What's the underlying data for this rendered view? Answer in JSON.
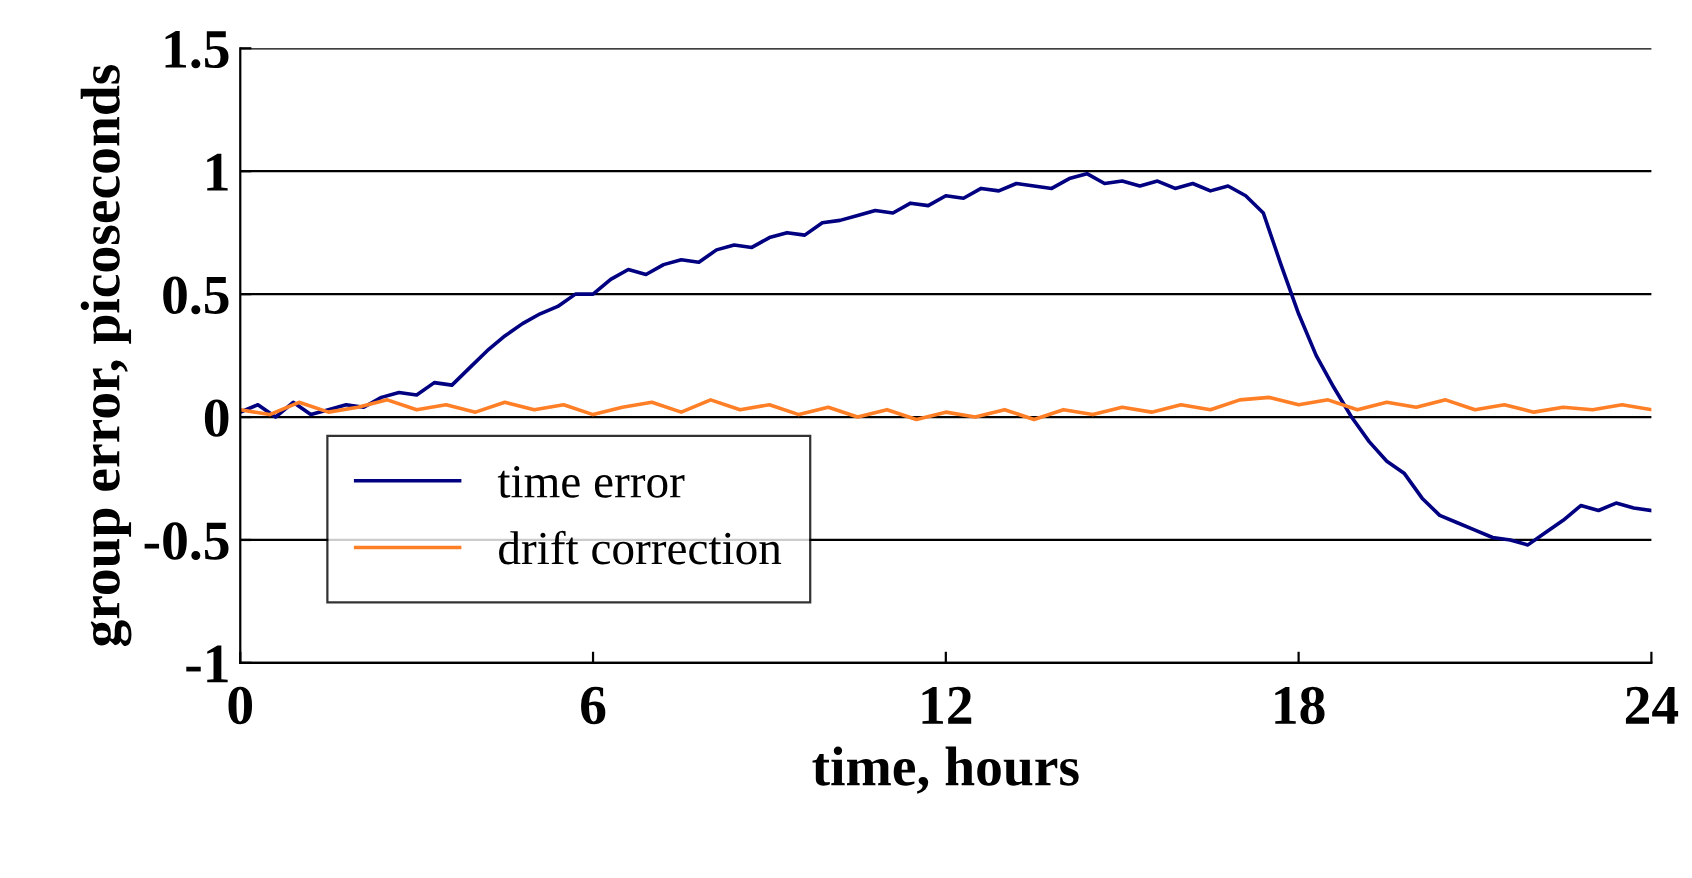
{
  "chart_data": {
    "type": "line",
    "xlabel": "time, hours",
    "ylabel": "group error, picoseconds",
    "xlim": [
      0,
      24
    ],
    "ylim": [
      -1,
      1.5
    ],
    "xticks": [
      0,
      6,
      12,
      18,
      24
    ],
    "yticks": [
      -1,
      -0.5,
      0,
      0.5,
      1,
      1.5
    ],
    "grid": "y",
    "legend": "bottom left",
    "marker": "none",
    "line_style": "solid",
    "series": [
      {
        "name": "time error",
        "color": "#000080",
        "x": [
          0,
          0.3,
          0.6,
          0.9,
          1.2,
          1.5,
          1.8,
          2.1,
          2.4,
          2.7,
          3.0,
          3.3,
          3.6,
          3.9,
          4.2,
          4.5,
          4.8,
          5.1,
          5.4,
          5.7,
          6.0,
          6.3,
          6.6,
          6.9,
          7.2,
          7.5,
          7.8,
          8.1,
          8.4,
          8.7,
          9.0,
          9.3,
          9.6,
          9.9,
          10.2,
          10.5,
          10.8,
          11.1,
          11.4,
          11.7,
          12.0,
          12.3,
          12.6,
          12.9,
          13.2,
          13.5,
          13.8,
          14.1,
          14.4,
          14.7,
          15.0,
          15.3,
          15.6,
          15.9,
          16.2,
          16.5,
          16.8,
          17.1,
          17.4,
          17.7,
          18.0,
          18.3,
          18.6,
          18.9,
          19.2,
          19.5,
          19.8,
          20.1,
          20.4,
          20.7,
          21.0,
          21.3,
          21.6,
          21.9,
          22.2,
          22.5,
          22.8,
          23.1,
          23.4,
          23.7,
          24.0
        ],
        "values": [
          0.02,
          0.05,
          0.0,
          0.06,
          0.01,
          0.03,
          0.05,
          0.04,
          0.08,
          0.1,
          0.09,
          0.14,
          0.13,
          0.2,
          0.27,
          0.33,
          0.38,
          0.42,
          0.45,
          0.5,
          0.5,
          0.56,
          0.6,
          0.58,
          0.62,
          0.64,
          0.63,
          0.68,
          0.7,
          0.69,
          0.73,
          0.75,
          0.74,
          0.79,
          0.8,
          0.82,
          0.84,
          0.83,
          0.87,
          0.86,
          0.9,
          0.89,
          0.93,
          0.92,
          0.95,
          0.94,
          0.93,
          0.97,
          0.99,
          0.95,
          0.96,
          0.94,
          0.96,
          0.93,
          0.95,
          0.92,
          0.94,
          0.9,
          0.83,
          0.62,
          0.42,
          0.25,
          0.12,
          0.0,
          -0.1,
          -0.18,
          -0.23,
          -0.33,
          -0.4,
          -0.43,
          -0.46,
          -0.49,
          -0.5,
          -0.52,
          -0.47,
          -0.42,
          -0.36,
          -0.38,
          -0.35,
          -0.37,
          -0.38
        ]
      },
      {
        "name": "drift correction",
        "color": "#ff7f27",
        "x": [
          0,
          0.5,
          1,
          1.5,
          2,
          2.5,
          3,
          3.5,
          4,
          4.5,
          5,
          5.5,
          6,
          6.5,
          7,
          7.5,
          8,
          8.5,
          9,
          9.5,
          10,
          10.5,
          11,
          11.5,
          12,
          12.5,
          13,
          13.5,
          14,
          14.5,
          15,
          15.5,
          16,
          16.5,
          17,
          17.5,
          18,
          18.5,
          19,
          19.5,
          20,
          20.5,
          21,
          21.5,
          22,
          22.5,
          23,
          23.5,
          24
        ],
        "values": [
          0.03,
          0.01,
          0.06,
          0.02,
          0.04,
          0.07,
          0.03,
          0.05,
          0.02,
          0.06,
          0.03,
          0.05,
          0.01,
          0.04,
          0.06,
          0.02,
          0.07,
          0.03,
          0.05,
          0.01,
          0.04,
          0.0,
          0.03,
          -0.01,
          0.02,
          0.0,
          0.03,
          -0.01,
          0.03,
          0.01,
          0.04,
          0.02,
          0.05,
          0.03,
          0.07,
          0.08,
          0.05,
          0.07,
          0.03,
          0.06,
          0.04,
          0.07,
          0.03,
          0.05,
          0.02,
          0.04,
          0.03,
          0.05,
          0.03
        ]
      }
    ]
  }
}
